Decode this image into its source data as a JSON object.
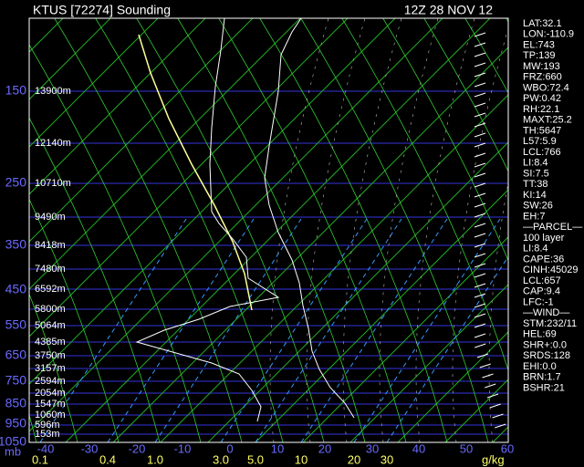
{
  "header": {
    "station": "KTUS [72274] Sounding",
    "time": "12Z  28 NOV 12"
  },
  "pressure_labels": [
    "150",
    "250",
    "350",
    "450",
    "550",
    "650",
    "750",
    "850",
    "950",
    "1050"
  ],
  "pressure_unit": "mb",
  "height_labels": [
    "13900m",
    "12140m",
    "10710m",
    "9490m",
    "8418m",
    "7480m",
    "6592m",
    "5800m",
    "5064m",
    "4385m",
    "3750m",
    "3157m",
    "2594m",
    "2054m",
    "1547m",
    "1060m",
    "596m",
    "153m"
  ],
  "temperature_labels": [
    "-40",
    "-30",
    "-20",
    "-10",
    "0",
    "10",
    "20",
    "30",
    "40",
    "50",
    "60"
  ],
  "mixing_ratio_labels": [
    "0.1",
    "0.4",
    "1.0",
    "3.0",
    "5.0",
    "10",
    "20",
    "30"
  ],
  "mixing_ratio_unit": "g/kg",
  "indices": [
    "LAT:32.1",
    "LON:-110.9",
    "EL:743",
    "TP:139",
    "MW:193",
    "FRZ:660",
    "WBO:72.4",
    "PW:0.42",
    "RH:22.1",
    "MAXT:25.2",
    "TH:5647",
    "L57:5.9",
    "LCL:766",
    "LI:8.4",
    "SI:7.5",
    "TT:38",
    "KI:14",
    "SW:26",
    "EH:7",
    "—PARCEL—",
    "100 layer",
    "LI:8.4",
    "CAPE:36",
    "CINH:45029",
    "LCL:657",
    "CAP:9.4",
    "LFC:-1",
    "—WIND—",
    "STM:232/11",
    "HEL:69",
    "SHR+:0.0",
    "SRDS:128",
    "EHI:0.0",
    "BRN:1.7",
    "BSHR:21"
  ]
}
